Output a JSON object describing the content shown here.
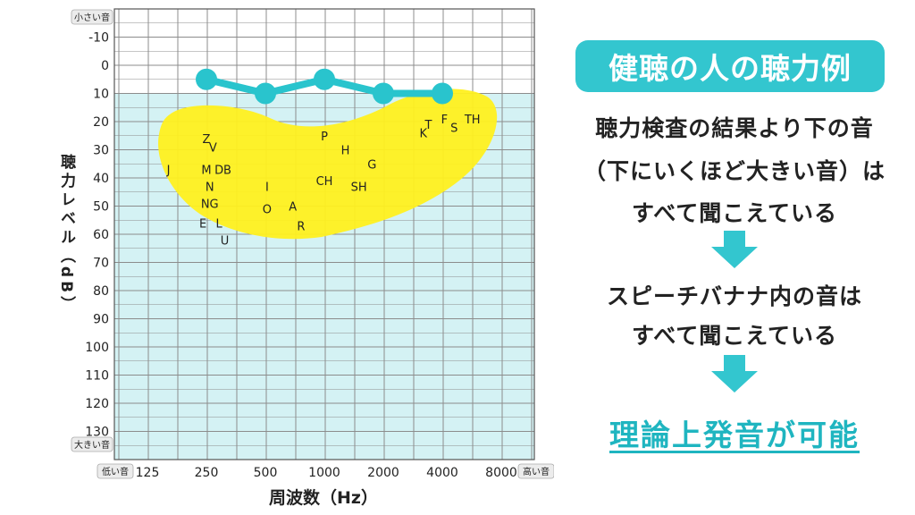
{
  "chart_data": {
    "type": "line",
    "xlabel": "周波数（Hz）",
    "ylabel": "聴力レベル（dB）",
    "x_ticks": [
      "125",
      "250",
      "500",
      "1000",
      "2000",
      "4000",
      "8000"
    ],
    "x_scale": "log2",
    "ylim": [
      -20,
      140
    ],
    "y_ticks": [
      -10,
      0,
      10,
      20,
      30,
      40,
      50,
      60,
      70,
      80,
      90,
      100,
      110,
      120,
      130
    ],
    "y_inverted": true,
    "top_label": "小さい音",
    "bottom_label": "大きい音",
    "left_label": "低い音",
    "right_label": "高い音",
    "normal_zone_threshold_db": 10,
    "grid": true,
    "series": [
      {
        "x": [
          250,
          500,
          1000,
          2000,
          4000
        ],
        "y": [
          5,
          10,
          5,
          10,
          10
        ],
        "color": "#29c4cd"
      }
    ],
    "speech_banana_letters": [
      {
        "text": "Z",
        "x": 250,
        "y": 26
      },
      {
        "text": "V",
        "x": 270,
        "y": 29
      },
      {
        "text": "J",
        "x": 160,
        "y": 37
      },
      {
        "text": "M",
        "x": 250,
        "y": 37
      },
      {
        "text": "D",
        "x": 290,
        "y": 37
      },
      {
        "text": "B",
        "x": 320,
        "y": 37
      },
      {
        "text": "N",
        "x": 260,
        "y": 43
      },
      {
        "text": "NG",
        "x": 260,
        "y": 49
      },
      {
        "text": "E",
        "x": 240,
        "y": 56
      },
      {
        "text": "L",
        "x": 290,
        "y": 56
      },
      {
        "text": "U",
        "x": 310,
        "y": 62
      },
      {
        "text": "I",
        "x": 510,
        "y": 43
      },
      {
        "text": "O",
        "x": 510,
        "y": 51
      },
      {
        "text": "A",
        "x": 690,
        "y": 50
      },
      {
        "text": "R",
        "x": 760,
        "y": 57
      },
      {
        "text": "P",
        "x": 1000,
        "y": 25
      },
      {
        "text": "H",
        "x": 1280,
        "y": 30
      },
      {
        "text": "G",
        "x": 1750,
        "y": 35
      },
      {
        "text": "CH",
        "x": 1000,
        "y": 41
      },
      {
        "text": "SH",
        "x": 1500,
        "y": 43
      },
      {
        "text": "K",
        "x": 3200,
        "y": 24
      },
      {
        "text": "T",
        "x": 3400,
        "y": 21
      },
      {
        "text": "F",
        "x": 4100,
        "y": 19
      },
      {
        "text": "S",
        "x": 4600,
        "y": 22
      },
      {
        "text": "TH",
        "x": 5700,
        "y": 19
      }
    ],
    "colors": {
      "line": "#29c4cd",
      "zone_fill": "#d4f2f4",
      "banana": "#fff01f",
      "grid": "#8c8c8c"
    }
  },
  "panel": {
    "title": "健聴の人の聴力例",
    "text1_line1": "聴力検査の結果より下の音",
    "text1_line2": "（下にいくほど大きい音）は",
    "text1_line3": "すべて聞こえている",
    "text2_line1": "スピーチバナナ内の音は",
    "text2_line2": "すべて聞こえている",
    "conclusion": "理論上発音が可能",
    "accent_color": "#33c6cf"
  }
}
